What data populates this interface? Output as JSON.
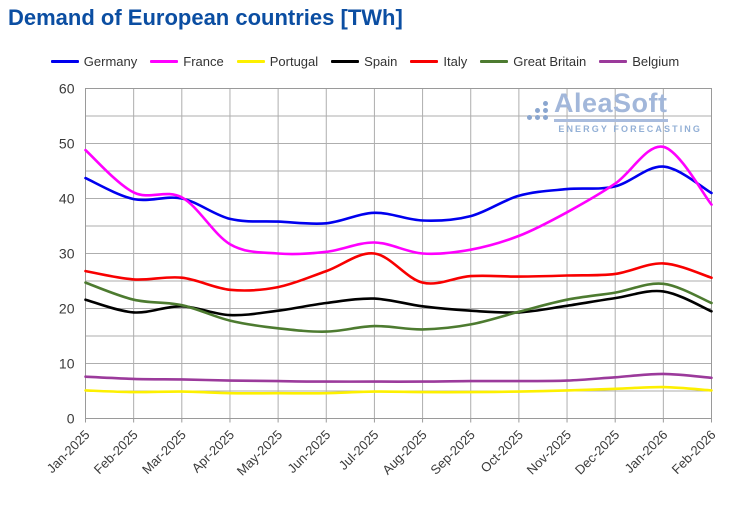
{
  "title": "Demand of European countries [TWh]",
  "watermark": {
    "brand": "AleaSoft",
    "tagline": "ENERGY FORECASTING"
  },
  "colors": {
    "title": "#0b4ea2",
    "axis_text": "#3a3a3a",
    "gridline": "#aeaeae",
    "plot_border": "#9a9a9a",
    "watermark": "#a2b7da"
  },
  "chart_data": {
    "type": "line",
    "title": "Demand of European countries [TWh]",
    "xlabel": "",
    "ylabel": "",
    "ylim": [
      0,
      60
    ],
    "y_major_ticks": [
      0,
      10,
      20,
      30,
      40,
      50,
      60
    ],
    "y_minor_step": 5,
    "grid": true,
    "legend_position": "top",
    "x": [
      "Jan-2025",
      "Feb-2025",
      "Mar-2025",
      "Apr-2025",
      "May-2025",
      "Jun-2025",
      "Jul-2025",
      "Aug-2025",
      "Sep-2025",
      "Oct-2025",
      "Nov-2025",
      "Dec-2025",
      "Jan-2026",
      "Feb-2026"
    ],
    "series": [
      {
        "name": "Germany",
        "color": "#0000ee",
        "values": [
          43.7,
          39.9,
          40.0,
          36.3,
          35.8,
          35.5,
          37.4,
          36.0,
          36.8,
          40.5,
          41.7,
          42.2,
          45.8,
          41.0
        ]
      },
      {
        "name": "France",
        "color": "#ff00ff",
        "values": [
          48.8,
          41.1,
          40.2,
          31.7,
          30.0,
          30.3,
          32.0,
          30.0,
          30.7,
          33.2,
          37.5,
          42.7,
          49.4,
          38.9
        ]
      },
      {
        "name": "Portugal",
        "color": "#fdf000",
        "values": [
          5.1,
          4.8,
          4.9,
          4.6,
          4.6,
          4.6,
          4.9,
          4.8,
          4.8,
          4.9,
          5.1,
          5.4,
          5.7,
          5.1
        ]
      },
      {
        "name": "Spain",
        "color": "#000000",
        "values": [
          21.6,
          19.3,
          20.4,
          18.8,
          19.6,
          21.0,
          21.8,
          20.4,
          19.6,
          19.3,
          20.5,
          21.9,
          23.1,
          19.5
        ]
      },
      {
        "name": "Italy",
        "color": "#f80000",
        "values": [
          26.8,
          25.3,
          25.6,
          23.4,
          23.9,
          26.8,
          30.0,
          24.7,
          25.9,
          25.8,
          26.0,
          26.3,
          28.2,
          25.6
        ]
      },
      {
        "name": "Great Britain",
        "color": "#4d7b30",
        "values": [
          24.7,
          21.6,
          20.6,
          17.8,
          16.4,
          15.8,
          16.8,
          16.2,
          17.1,
          19.4,
          21.6,
          22.9,
          24.5,
          21.0
        ]
      },
      {
        "name": "Belgium",
        "color": "#9b3a9b",
        "values": [
          7.6,
          7.2,
          7.1,
          6.9,
          6.8,
          6.7,
          6.7,
          6.7,
          6.8,
          6.8,
          6.9,
          7.5,
          8.1,
          7.4
        ]
      }
    ]
  }
}
